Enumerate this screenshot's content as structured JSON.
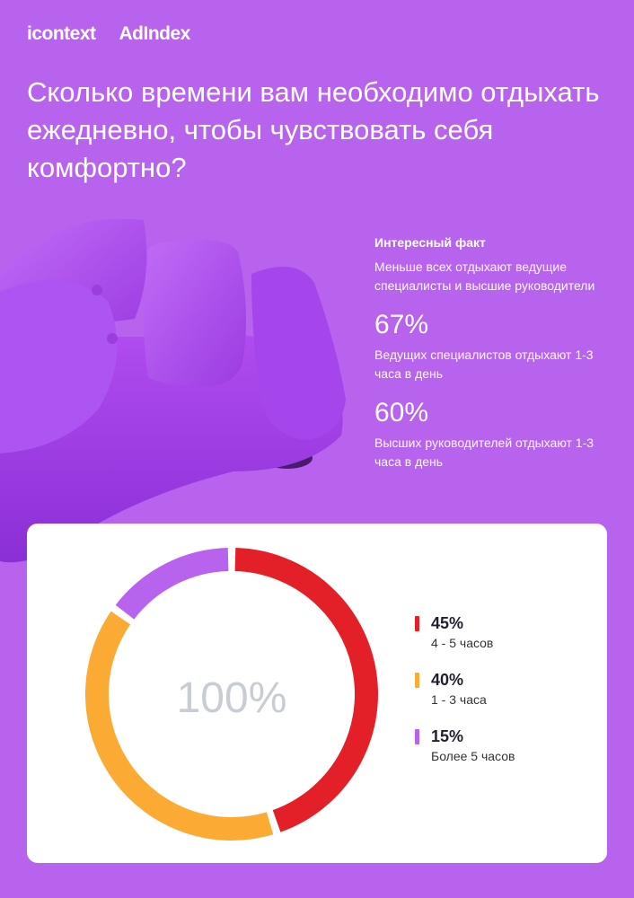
{
  "header": {
    "logos": [
      "icontext",
      "AdIndex"
    ],
    "title": "Сколько времени вам необходимо отдыхать ежедневно, чтобы чувствовать себя комфортно?"
  },
  "fact": {
    "heading": "Интересный факт",
    "intro": "Меньше всех отдыхают ведущие специалисты и высшие руководители",
    "stats": [
      {
        "value": "67%",
        "text": "Ведущих специалистов отдыхают 1-3 часа в день"
      },
      {
        "value": "60%",
        "text": "Высших руководителей отдыхают 1-3 часа в день"
      }
    ]
  },
  "chart_data": {
    "type": "pie",
    "center_label": "100%",
    "categories": [
      "4 - 5 часов",
      "1 - 3 часа",
      "Более 5 часов"
    ],
    "values": [
      45,
      40,
      15
    ],
    "value_labels": [
      "45%",
      "40%",
      "15%"
    ],
    "colors": [
      "#e32028",
      "#fbab34",
      "#b763ee"
    ],
    "legend_position": "right"
  },
  "colors": {
    "background": "#b763ee",
    "card": "#ffffff",
    "center_text": "#c8ccd3"
  }
}
